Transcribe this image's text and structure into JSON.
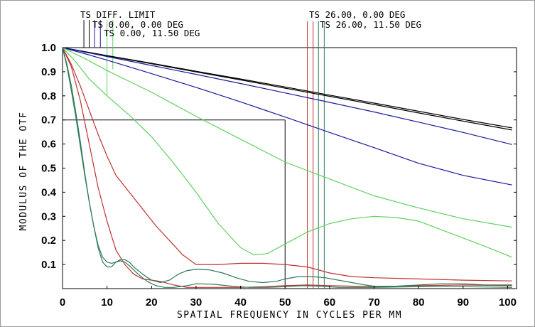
{
  "chart_data": {
    "type": "line",
    "xlabel": "SPATIAL FREQUENCY IN CYCLES PER MM",
    "ylabel": "MODULUS OF THE OTF",
    "xlim": [
      0,
      102
    ],
    "ylim": [
      0,
      1.0
    ],
    "x_ticks": [
      "0",
      "10",
      "20",
      "30",
      "40",
      "50",
      "60",
      "70",
      "80",
      "90",
      "100"
    ],
    "y_ticks": [
      "0.1",
      "0.2",
      "0.3",
      "0.4",
      "0.5",
      "0.6",
      "0.7",
      "0.8",
      "0.9",
      "1.0"
    ],
    "grid": false,
    "annotation": {
      "x": 50,
      "y": 0.7
    },
    "legend_labels": [
      {
        "text": "TS DIFF. LIMIT",
        "color": "#000000"
      },
      {
        "text": "TS 0.00, 0.00 DEG",
        "color": "#1a1a9c"
      },
      {
        "text": "TS 0.00, 11.50 DEG",
        "color": "#60d060"
      },
      {
        "text": "TS 26.00, 0.00 DEG",
        "color": "#c03030"
      },
      {
        "text": "TS 26.00, 11.50 DEG",
        "color": "#2e7a5a"
      }
    ],
    "legend_markers": [
      {
        "x": 4.8,
        "color": "#000000",
        "y_end": 1.0
      },
      {
        "x": 6.0,
        "color": "#000000",
        "y_end": 1.0
      },
      {
        "x": 7.2,
        "color": "#1a1a9c",
        "y_end": 1.0
      },
      {
        "x": 8.5,
        "color": "#1a1a9c",
        "y_end": 1.0
      },
      {
        "x": 10.0,
        "color": "#60d060",
        "y_end": 0.8
      },
      {
        "x": 11.3,
        "color": "#60d060",
        "y_end": 0.91
      },
      {
        "x": 55.0,
        "color": "#c03030",
        "y_end": 0.0
      },
      {
        "x": 56.3,
        "color": "#c03030",
        "y_end": 0.0
      },
      {
        "x": 57.5,
        "color": "#2e7a5a",
        "y_end": 0.0
      },
      {
        "x": 58.8,
        "color": "#2e7a5a",
        "y_end": 0.0
      }
    ],
    "series": [
      {
        "color": "#000000",
        "points": [
          [
            0,
            1.0
          ],
          [
            10,
            0.967
          ],
          [
            20,
            0.935
          ],
          [
            30,
            0.902
          ],
          [
            40,
            0.87
          ],
          [
            50,
            0.837
          ],
          [
            60,
            0.803
          ],
          [
            70,
            0.77
          ],
          [
            80,
            0.736
          ],
          [
            90,
            0.702
          ],
          [
            101,
            0.667
          ]
        ]
      },
      {
        "color": "#000000",
        "points": [
          [
            0,
            1.0
          ],
          [
            10,
            0.966
          ],
          [
            20,
            0.933
          ],
          [
            30,
            0.899
          ],
          [
            40,
            0.866
          ],
          [
            50,
            0.832
          ],
          [
            60,
            0.798
          ],
          [
            70,
            0.764
          ],
          [
            80,
            0.729
          ],
          [
            90,
            0.695
          ],
          [
            101,
            0.658
          ]
        ]
      },
      {
        "color": "#1a1a9c",
        "points": [
          [
            0,
            1.0
          ],
          [
            10,
            0.963
          ],
          [
            20,
            0.926
          ],
          [
            30,
            0.889
          ],
          [
            40,
            0.851
          ],
          [
            50,
            0.812
          ],
          [
            60,
            0.773
          ],
          [
            70,
            0.733
          ],
          [
            80,
            0.691
          ],
          [
            90,
            0.648
          ],
          [
            101,
            0.598
          ]
        ]
      },
      {
        "color": "#1a1a9c",
        "points": [
          [
            0,
            1.0
          ],
          [
            5,
            0.975
          ],
          [
            10,
            0.948
          ],
          [
            20,
            0.892
          ],
          [
            30,
            0.835
          ],
          [
            40,
            0.775
          ],
          [
            50,
            0.712
          ],
          [
            60,
            0.648
          ],
          [
            70,
            0.585
          ],
          [
            80,
            0.52
          ],
          [
            90,
            0.47
          ],
          [
            101,
            0.43
          ]
        ]
      },
      {
        "color": "#60d060",
        "points": [
          [
            0,
            1.0
          ],
          [
            5,
            0.955
          ],
          [
            10,
            0.905
          ],
          [
            15,
            0.86
          ],
          [
            20,
            0.815
          ],
          [
            30,
            0.715
          ],
          [
            40,
            0.62
          ],
          [
            50,
            0.525
          ],
          [
            60,
            0.455
          ],
          [
            70,
            0.385
          ],
          [
            80,
            0.335
          ],
          [
            90,
            0.29
          ],
          [
            101,
            0.255
          ]
        ]
      },
      {
        "color": "#60d060",
        "points": [
          [
            0,
            1.0
          ],
          [
            3,
            0.94
          ],
          [
            6,
            0.87
          ],
          [
            10,
            0.8
          ],
          [
            15,
            0.72
          ],
          [
            20,
            0.63
          ],
          [
            25,
            0.52
          ],
          [
            30,
            0.4
          ],
          [
            35,
            0.27
          ],
          [
            40,
            0.17
          ],
          [
            43,
            0.14
          ],
          [
            46,
            0.145
          ],
          [
            50,
            0.185
          ],
          [
            55,
            0.235
          ],
          [
            60,
            0.27
          ],
          [
            65,
            0.29
          ],
          [
            70,
            0.3
          ],
          [
            75,
            0.295
          ],
          [
            80,
            0.28
          ],
          [
            85,
            0.245
          ],
          [
            90,
            0.21
          ],
          [
            95,
            0.175
          ],
          [
            101,
            0.13
          ]
        ]
      },
      {
        "color": "#c03030",
        "points": [
          [
            0,
            1.0
          ],
          [
            2,
            0.93
          ],
          [
            4,
            0.84
          ],
          [
            6,
            0.74
          ],
          [
            8,
            0.64
          ],
          [
            10,
            0.55
          ],
          [
            12,
            0.47
          ],
          [
            15,
            0.4
          ],
          [
            18,
            0.33
          ],
          [
            21,
            0.26
          ],
          [
            24,
            0.2
          ],
          [
            27,
            0.14
          ],
          [
            30,
            0.1
          ],
          [
            35,
            0.1
          ],
          [
            40,
            0.105
          ],
          [
            45,
            0.105
          ],
          [
            50,
            0.1
          ],
          [
            55,
            0.09
          ],
          [
            60,
            0.065
          ],
          [
            65,
            0.05
          ],
          [
            70,
            0.045
          ],
          [
            80,
            0.04
          ],
          [
            90,
            0.035
          ],
          [
            101,
            0.032
          ]
        ]
      },
      {
        "color": "#c03030",
        "points": [
          [
            0,
            1.0
          ],
          [
            2,
            0.92
          ],
          [
            4,
            0.78
          ],
          [
            6,
            0.6
          ],
          [
            8,
            0.42
          ],
          [
            10,
            0.28
          ],
          [
            12,
            0.16
          ],
          [
            14,
            0.1
          ],
          [
            16,
            0.06
          ],
          [
            18,
            0.04
          ],
          [
            20,
            0.035
          ],
          [
            22,
            0.03
          ],
          [
            25,
            0.015
          ],
          [
            28,
            0.005
          ],
          [
            30,
            0.005
          ],
          [
            35,
            0.005
          ],
          [
            40,
            0.005
          ],
          [
            45,
            0.008
          ],
          [
            50,
            0.012
          ],
          [
            55,
            0.015
          ],
          [
            60,
            0.012
          ],
          [
            70,
            0.008
          ],
          [
            80,
            0.012
          ],
          [
            90,
            0.015
          ],
          [
            101,
            0.012
          ]
        ]
      },
      {
        "color": "#2e7a5a",
        "points": [
          [
            0,
            1.0
          ],
          [
            1,
            0.92
          ],
          [
            2,
            0.82
          ],
          [
            3,
            0.71
          ],
          [
            4,
            0.59
          ],
          [
            5,
            0.47
          ],
          [
            6,
            0.36
          ],
          [
            7,
            0.26
          ],
          [
            8,
            0.17
          ],
          [
            9,
            0.11
          ],
          [
            10,
            0.09
          ],
          [
            11,
            0.09
          ],
          [
            12,
            0.11
          ],
          [
            13,
            0.12
          ],
          [
            14,
            0.12
          ],
          [
            15,
            0.11
          ],
          [
            16,
            0.09
          ],
          [
            18,
            0.06
          ],
          [
            20,
            0.035
          ],
          [
            22,
            0.025
          ],
          [
            24,
            0.035
          ],
          [
            26,
            0.06
          ],
          [
            28,
            0.075
          ],
          [
            30,
            0.08
          ],
          [
            33,
            0.078
          ],
          [
            36,
            0.065
          ],
          [
            39,
            0.045
          ],
          [
            42,
            0.03
          ],
          [
            45,
            0.025
          ],
          [
            48,
            0.03
          ],
          [
            50,
            0.04
          ],
          [
            53,
            0.05
          ],
          [
            56,
            0.05
          ],
          [
            59,
            0.045
          ],
          [
            62,
            0.035
          ],
          [
            65,
            0.025
          ],
          [
            68,
            0.015
          ],
          [
            70,
            0.01
          ],
          [
            75,
            0.01
          ],
          [
            80,
            0.015
          ],
          [
            85,
            0.02
          ],
          [
            90,
            0.02
          ],
          [
            95,
            0.015
          ],
          [
            101,
            0.015
          ]
        ]
      },
      {
        "color": "#2e7a5a",
        "points": [
          [
            0,
            1.0
          ],
          [
            1,
            0.93
          ],
          [
            2,
            0.84
          ],
          [
            3,
            0.73
          ],
          [
            4,
            0.61
          ],
          [
            5,
            0.48
          ],
          [
            6,
            0.36
          ],
          [
            7,
            0.26
          ],
          [
            8,
            0.18
          ],
          [
            9,
            0.13
          ],
          [
            10,
            0.11
          ],
          [
            11,
            0.105
          ],
          [
            12,
            0.11
          ],
          [
            13,
            0.115
          ],
          [
            14,
            0.11
          ],
          [
            15,
            0.095
          ],
          [
            17,
            0.06
          ],
          [
            19,
            0.03
          ],
          [
            21,
            0.012
          ],
          [
            23,
            0.005
          ],
          [
            25,
            0.005
          ],
          [
            28,
            0.012
          ],
          [
            30,
            0.02
          ],
          [
            34,
            0.018
          ],
          [
            38,
            0.01
          ],
          [
            42,
            0.005
          ],
          [
            46,
            0.005
          ],
          [
            50,
            0.008
          ],
          [
            54,
            0.012
          ],
          [
            58,
            0.01
          ],
          [
            62,
            0.005
          ],
          [
            66,
            0.005
          ],
          [
            70,
            0.005
          ],
          [
            80,
            0.008
          ],
          [
            90,
            0.008
          ],
          [
            101,
            0.005
          ]
        ]
      }
    ]
  }
}
